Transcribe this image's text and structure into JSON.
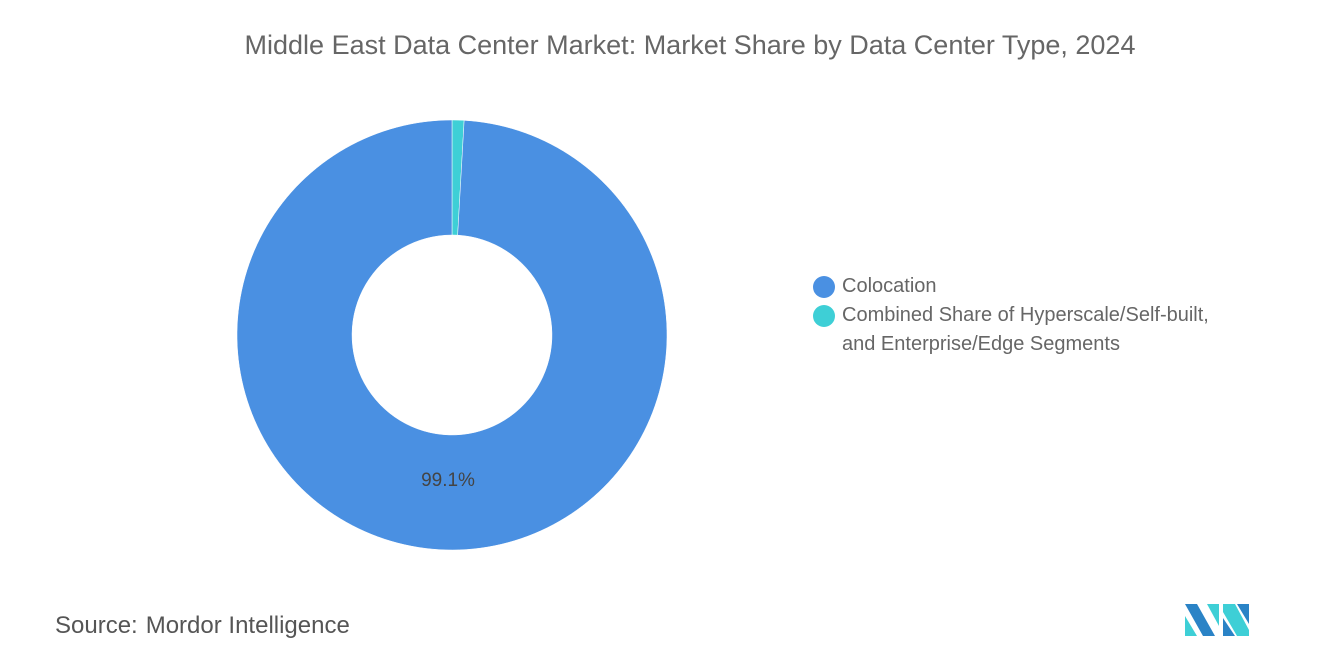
{
  "chart_data": {
    "type": "pie",
    "title": "Middle East Data Center Market: Market Share by Data Center Type, 2024",
    "donut": true,
    "categories": [
      "Colocation",
      "Combined Share of Hyperscale/Self-built, and Enterprise/Edge Segments"
    ],
    "values": [
      99.1,
      0.9
    ],
    "data_labels": [
      "99.1%",
      ""
    ],
    "colors": [
      "#4a90e2",
      "#3ecfd6"
    ],
    "legend_position": "right"
  },
  "legend": {
    "line1": "Combined Share of Hyperscale/Self-built,",
    "line2": "and Enterprise/Edge Segments"
  },
  "source": {
    "label": "Source:",
    "value": "Mordor Intelligence"
  },
  "logo": {
    "text": "Mordor Intelligence",
    "colors": [
      "#2a83c6",
      "#3ecfd6"
    ]
  }
}
